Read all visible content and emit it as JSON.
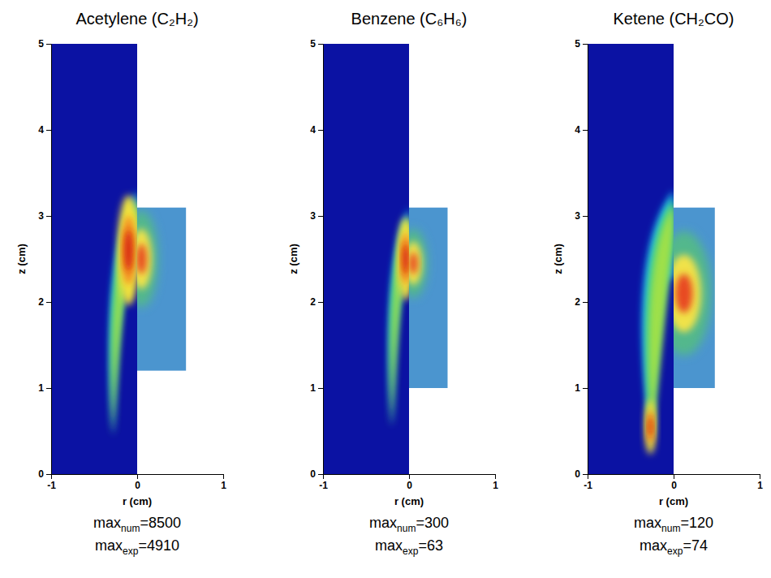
{
  "chart_data": [
    {
      "type": "heatmap",
      "title": "Acetylene (C₂H₂)",
      "x_label": "r (cm)",
      "y_label": "z (cm)",
      "xlim": [
        -1,
        1
      ],
      "ylim": [
        0,
        5
      ],
      "xticks": [
        -1,
        0,
        1
      ],
      "yticks": [
        0,
        1,
        2,
        3,
        4,
        5
      ],
      "num_field": {
        "base": [
          -0.28,
          0.45
        ],
        "top": [
          0,
          3.3
        ],
        "thickness": 0.15,
        "peak": [
          -0.1,
          2.6
        ],
        "peak_extent": [
          0.08,
          0.4
        ]
      },
      "exp_field": {
        "r": [
          0,
          0.57
        ],
        "z": [
          1.2,
          3.1
        ],
        "peak": [
          0.05,
          2.5
        ],
        "spread": [
          0.12,
          0.35
        ]
      },
      "stats": [
        {
          "label": "max",
          "sub": "num",
          "sep": "=",
          "value": 8500
        },
        {
          "label": "max",
          "sub": "exp",
          "sep": "=",
          "value": 4910
        }
      ]
    },
    {
      "type": "heatmap",
      "title": "Benzene (C₆H₆)",
      "x_label": "r (cm)",
      "y_label": "z (cm)",
      "xlim": [
        -1,
        1
      ],
      "ylim": [
        0,
        5
      ],
      "xticks": [
        -1,
        0,
        1
      ],
      "yticks": [
        0,
        1,
        2,
        3,
        4,
        5
      ],
      "num_field": {
        "base": [
          -0.2,
          0.55
        ],
        "top": [
          0,
          3.1
        ],
        "thickness": 0.12,
        "peak": [
          -0.04,
          2.5
        ],
        "peak_extent": [
          0.06,
          0.3
        ]
      },
      "exp_field": {
        "r": [
          0,
          0.45
        ],
        "z": [
          1.0,
          3.1
        ],
        "peak": [
          0.05,
          2.45
        ],
        "spread": [
          0.1,
          0.25
        ]
      },
      "stats": [
        {
          "label": "max",
          "sub": "num",
          "sep": "=",
          "value": 300
        },
        {
          "label": "max",
          "sub": "exp",
          "sep": "=",
          "value": 63
        }
      ]
    },
    {
      "type": "heatmap",
      "title": "Ketene (CH₂CO)",
      "x_label": "r (cm)",
      "y_label": "z (cm)",
      "xlim": [
        -1,
        1
      ],
      "ylim": [
        0,
        5
      ],
      "xticks": [
        -1,
        0,
        1
      ],
      "yticks": [
        0,
        1,
        2,
        3,
        4,
        5
      ],
      "num_field": {
        "base": [
          -0.26,
          0.38
        ],
        "top": [
          0,
          3.3
        ],
        "thickness": 0.3,
        "peak": [
          -0.27,
          0.55
        ],
        "peak_extent": [
          0.04,
          0.2
        ]
      },
      "exp_field": {
        "r": [
          0,
          0.48
        ],
        "z": [
          1.0,
          3.1
        ],
        "peak": [
          0.12,
          2.1
        ],
        "spread": [
          0.2,
          0.45
        ]
      },
      "stats": [
        {
          "label": "max",
          "sub": "num",
          "sep": "=",
          "value": 120
        },
        {
          "label": "max",
          "sub": "exp",
          "sep": "=",
          "value": 74
        }
      ]
    }
  ]
}
